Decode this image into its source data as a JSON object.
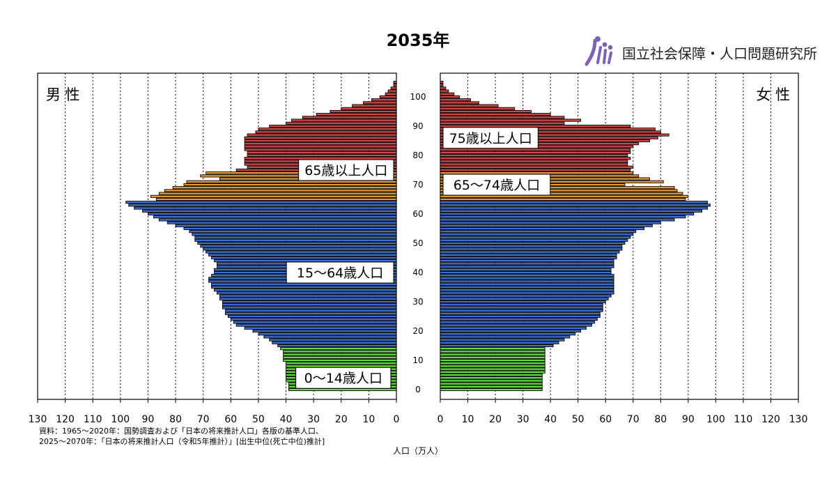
{
  "title": "2035年",
  "logo": {
    "text": "国立社会保障・人口問題研究所",
    "icon": "ipss-logo-icon"
  },
  "source": [
    "資料：1965～2020年：国勢調査および「日本の将来推計人口」各版の基準人口、",
    "2025～2070年：「日本の将来推計人口（令和5年推計）」[出生中位(死亡中位)推計]"
  ],
  "chart_data": {
    "type": "bar",
    "orientation": "horizontal-population-pyramid",
    "title": "2035年",
    "xlabel": "人口（万人）",
    "ylabel": "",
    "xlim": [
      0,
      130
    ],
    "age_range": [
      0,
      105
    ],
    "grid": true,
    "grid_style": "dotted vertical",
    "side_labels": {
      "male": "男 性",
      "female": "女 性"
    },
    "x_ticks_male": [
      130,
      120,
      110,
      100,
      90,
      80,
      70,
      60,
      50,
      40,
      30,
      20,
      10,
      0
    ],
    "x_ticks_female": [
      0,
      10,
      20,
      30,
      40,
      50,
      60,
      70,
      80,
      90,
      100,
      110,
      120,
      130
    ],
    "age_ticks": [
      0,
      10,
      20,
      30,
      40,
      50,
      60,
      70,
      80,
      90,
      100
    ],
    "groups": [
      {
        "label": "0～14歳人口",
        "min_age": 0,
        "max_age": 14,
        "color": "#66dd44"
      },
      {
        "label": "15～64歳人口",
        "min_age": 15,
        "max_age": 64,
        "color": "#3f6fd0"
      },
      {
        "label": "65～74歳人口",
        "min_age": 65,
        "max_age": 74,
        "color": "#e79a3a"
      },
      {
        "label": "75歳以上人口",
        "min_age": 75,
        "max_age": 105,
        "color": "#d04848"
      }
    ],
    "group_label_65plus": "65歳以上人口",
    "male": [
      39,
      39,
      39,
      40,
      40,
      40,
      40,
      40,
      40,
      40,
      41,
      41,
      41,
      41,
      42,
      43,
      45,
      46,
      48,
      50,
      52,
      55,
      58,
      59,
      60,
      61,
      62,
      62,
      63,
      63,
      63,
      64,
      64,
      65,
      66,
      67,
      67,
      68,
      68,
      67,
      66,
      66,
      65,
      65,
      66,
      67,
      68,
      69,
      70,
      71,
      72,
      73,
      73,
      74,
      75,
      77,
      80,
      83,
      86,
      88,
      90,
      92,
      95,
      97,
      98,
      87,
      89,
      86,
      84,
      81,
      77,
      76,
      64,
      71,
      69,
      58,
      54,
      55,
      55,
      55,
      54,
      54,
      55,
      55,
      55,
      55,
      55,
      54,
      51,
      50,
      46,
      40,
      38,
      34,
      29,
      24,
      20,
      16,
      12,
      9,
      6,
      4,
      3,
      2,
      1,
      1
    ],
    "female": [
      37,
      37,
      37,
      37,
      37,
      37,
      38,
      38,
      38,
      38,
      38,
      38,
      38,
      38,
      38,
      41,
      43,
      45,
      47,
      49,
      51,
      53,
      55,
      56,
      57,
      58,
      58,
      59,
      59,
      59,
      60,
      61,
      62,
      63,
      63,
      63,
      63,
      63,
      63,
      63,
      62,
      62,
      63,
      63,
      63,
      64,
      64,
      65,
      66,
      66,
      67,
      68,
      69,
      70,
      71,
      74,
      77,
      80,
      85,
      89,
      92,
      95,
      97,
      98,
      97,
      89,
      90,
      88,
      86,
      85,
      67,
      81,
      76,
      72,
      70,
      69,
      70,
      68,
      68,
      69,
      68,
      69,
      69,
      70,
      72,
      76,
      79,
      83,
      80,
      78,
      69,
      45,
      51,
      45,
      40,
      33,
      27,
      21,
      14,
      11,
      7,
      5,
      3,
      2,
      1,
      1
    ]
  }
}
